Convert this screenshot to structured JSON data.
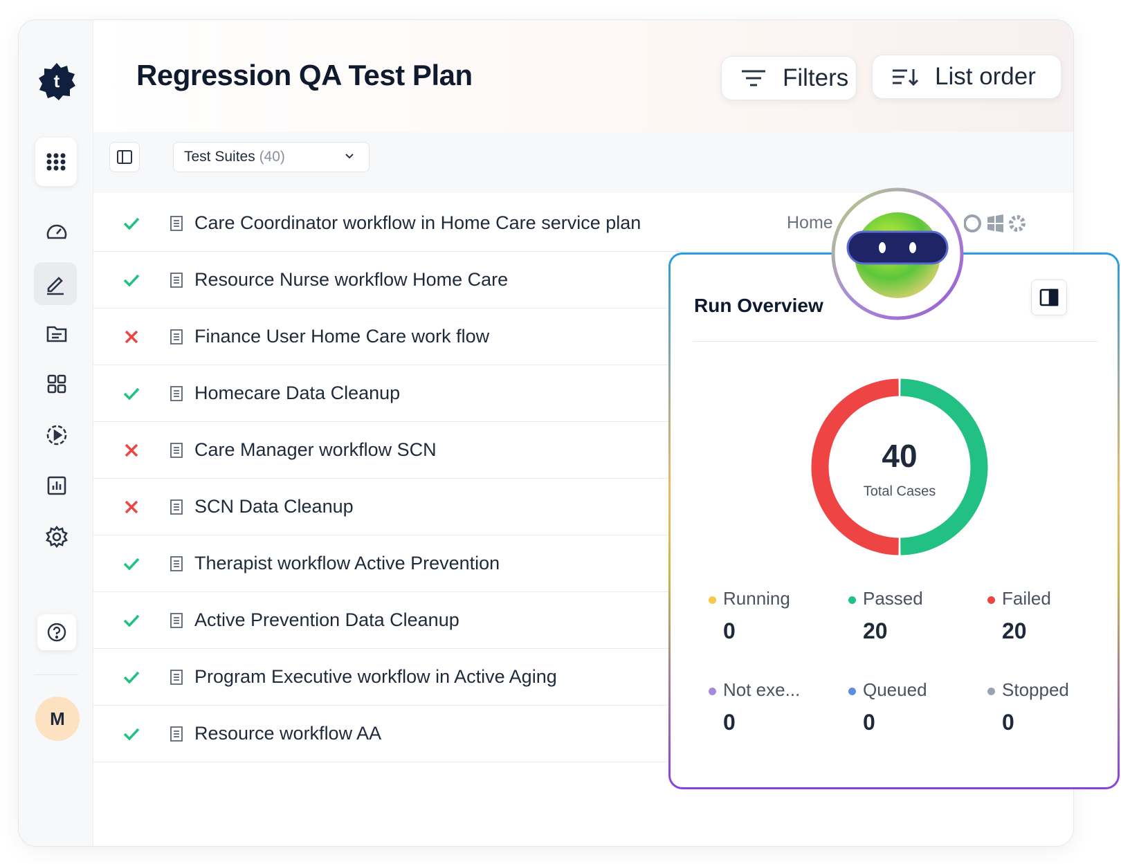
{
  "header": {
    "title": "Regression QA Test Plan",
    "filters": "Filters",
    "list_order": "List order"
  },
  "toolbar": {
    "label": "Test Suites",
    "count": "(40)"
  },
  "rows": [
    {
      "name": "Care Coordinator workflow in Home Care service plan",
      "status": "pass",
      "tag": "Home"
    },
    {
      "name": "Resource Nurse workflow Home Care",
      "status": "pass"
    },
    {
      "name": "Finance User Home Care work flow",
      "status": "fail"
    },
    {
      "name": "Homecare Data Cleanup",
      "status": "pass"
    },
    {
      "name": "Care Manager workflow SCN",
      "status": "fail"
    },
    {
      "name": "SCN Data Cleanup",
      "status": "fail"
    },
    {
      "name": "Therapist workflow Active Prevention",
      "status": "pass"
    },
    {
      "name": "Active Prevention Data Cleanup",
      "status": "pass"
    },
    {
      "name": "Program Executive workflow in Active Aging",
      "status": "pass"
    },
    {
      "name": "Resource workflow AA",
      "status": "pass"
    }
  ],
  "run_overview": {
    "title": "Run Overview",
    "total": 40,
    "total_label": "Total Cases",
    "stats": [
      {
        "name": "Running",
        "value": 0,
        "color": "#f5c94a"
      },
      {
        "name": "Passed",
        "value": 20,
        "color": "#22c083"
      },
      {
        "name": "Failed",
        "value": 20,
        "color": "#ef4444"
      },
      {
        "name": "Not exe...",
        "value": 0,
        "color": "#a78bdb"
      },
      {
        "name": "Queued",
        "value": 0,
        "color": "#5b8fd9"
      },
      {
        "name": "Stopped",
        "value": 0,
        "color": "#9aa3ad"
      }
    ]
  },
  "user": {
    "initial": "M"
  }
}
